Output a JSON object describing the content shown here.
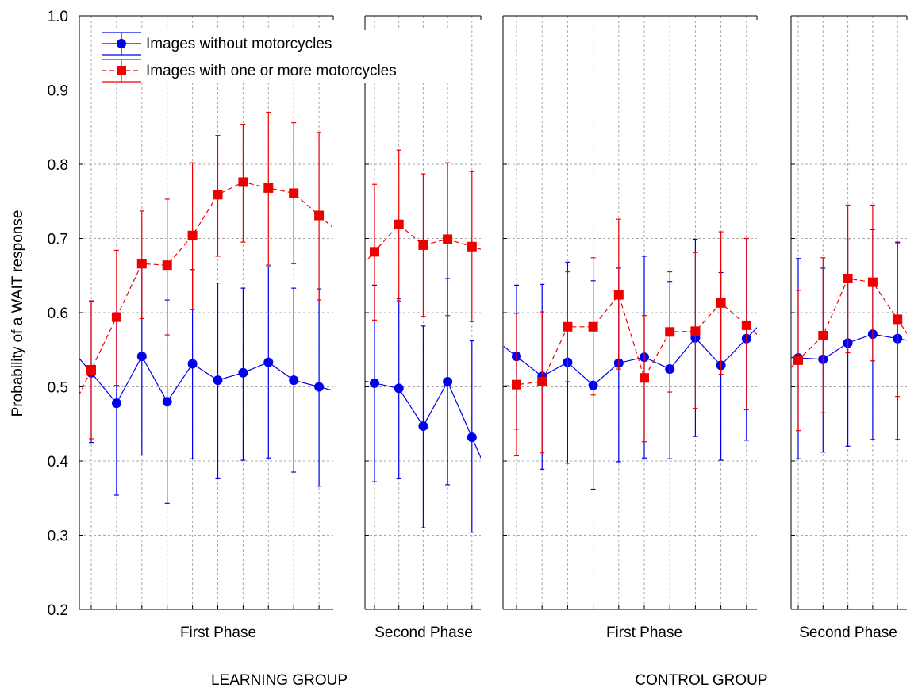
{
  "chart_data": {
    "type": "line",
    "ylabel": "Probability of a WAIT response",
    "ylim": [
      0.2,
      1.0
    ],
    "yticks": [
      "0.2",
      "0.3",
      "0.4",
      "0.5",
      "0.6",
      "0.7",
      "0.8",
      "0.9",
      "1.0"
    ],
    "grid": true,
    "legend_position": "top-left",
    "colors": {
      "without": "#0000ee",
      "with": "#ee0000"
    },
    "legend": [
      {
        "key": "without",
        "label": "Images without motorcycles",
        "marker": "circle",
        "line": "solid"
      },
      {
        "key": "with",
        "label": "Images with one or more motorcycles",
        "marker": "square",
        "line": "dashed"
      }
    ],
    "groups": [
      {
        "label": "LEARNING GROUP",
        "panels": [
          0,
          1
        ]
      },
      {
        "label": "CONTROL GROUP",
        "panels": [
          2,
          3
        ]
      }
    ],
    "panels": [
      {
        "label": "First Phase",
        "series": [
          {
            "key": "without",
            "values": [
              0.519,
              0.478,
              0.541,
              0.48,
              0.531,
              0.509,
              0.519,
              0.533,
              0.509,
              0.5
            ],
            "lower": [
              0.425,
              0.354,
              0.408,
              0.343,
              0.403,
              0.377,
              0.401,
              0.404,
              0.385,
              0.366
            ],
            "upper": [
              0.615,
              0.6,
              0.668,
              0.617,
              0.658,
              0.64,
              0.633,
              0.662,
              0.633,
              0.632
            ]
          },
          {
            "key": "with",
            "values": [
              0.523,
              0.594,
              0.666,
              0.664,
              0.704,
              0.759,
              0.776,
              0.768,
              0.761,
              0.731
            ],
            "lower": [
              0.43,
              0.502,
              0.592,
              0.57,
              0.604,
              0.676,
              0.695,
              0.664,
              0.666,
              0.617
            ],
            "upper": [
              0.616,
              0.684,
              0.737,
              0.753,
              0.802,
              0.839,
              0.854,
              0.87,
              0.856,
              0.843
            ]
          }
        ]
      },
      {
        "label": "Second Phase",
        "series": [
          {
            "key": "without",
            "values": [
              0.505,
              0.498,
              0.447,
              0.507,
              0.432
            ],
            "lower": [
              0.372,
              0.377,
              0.31,
              0.368,
              0.304
            ],
            "upper": [
              0.637,
              0.619,
              0.582,
              0.646,
              0.562
            ]
          },
          {
            "key": "with",
            "values": [
              0.682,
              0.719,
              0.691,
              0.699,
              0.689
            ],
            "lower": [
              0.59,
              0.616,
              0.595,
              0.596,
              0.588
            ],
            "upper": [
              0.773,
              0.819,
              0.787,
              0.802,
              0.79
            ]
          }
        ]
      },
      {
        "label": "First Phase",
        "series": [
          {
            "key": "without",
            "values": [
              0.541,
              0.514,
              0.533,
              0.502,
              0.532,
              0.54,
              0.524,
              0.566,
              0.529,
              0.565
            ],
            "lower": [
              0.443,
              0.389,
              0.397,
              0.362,
              0.399,
              0.404,
              0.403,
              0.433,
              0.401,
              0.428
            ],
            "upper": [
              0.637,
              0.638,
              0.668,
              0.643,
              0.66,
              0.676,
              0.642,
              0.699,
              0.654,
              0.7
            ]
          },
          {
            "key": "with",
            "values": [
              0.503,
              0.507,
              0.581,
              0.581,
              0.624,
              0.512,
              0.574,
              0.575,
              0.613,
              0.583
            ],
            "lower": [
              0.407,
              0.411,
              0.507,
              0.489,
              0.524,
              0.426,
              0.493,
              0.471,
              0.517,
              0.469
            ],
            "upper": [
              0.599,
              0.601,
              0.655,
              0.674,
              0.726,
              0.596,
              0.655,
              0.681,
              0.709,
              0.7
            ]
          }
        ]
      },
      {
        "label": "Second Phase",
        "series": [
          {
            "key": "without",
            "values": [
              0.539,
              0.537,
              0.559,
              0.571,
              0.565
            ],
            "lower": [
              0.403,
              0.412,
              0.42,
              0.429,
              0.429
            ],
            "upper": [
              0.673,
              0.66,
              0.698,
              0.712,
              0.695
            ]
          },
          {
            "key": "with",
            "values": [
              0.536,
              0.569,
              0.646,
              0.641,
              0.591
            ],
            "lower": [
              0.441,
              0.465,
              0.546,
              0.535,
              0.487
            ],
            "upper": [
              0.63,
              0.674,
              0.745,
              0.745,
              0.694
            ]
          }
        ]
      }
    ]
  }
}
